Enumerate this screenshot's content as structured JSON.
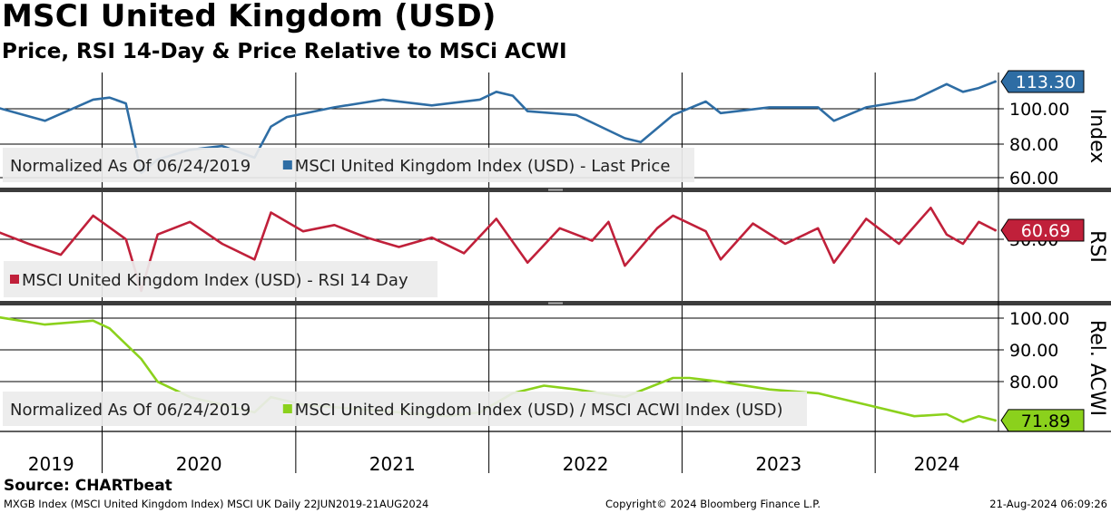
{
  "title": "MSCI United Kingdom (USD)",
  "subtitle": "Price, RSI 14-Day & Price Relative to MSCi ACWI",
  "source": "Source: CHARTbeat",
  "footer": {
    "left": "MXGB Index (MSCI United Kingdom Index) MSCI UK  Daily 22JUN2019-21AUG2024",
    "center": "Copyright© 2024 Bloomberg Finance L.P.",
    "right": "21-Aug-2024 06:09:26"
  },
  "colors": {
    "price": "#2e6da4",
    "rsi": "#c0203a",
    "relative": "#8bd11c"
  },
  "chart_data": [
    {
      "type": "line",
      "panel": "price",
      "axis_label": "Index",
      "y_ticks": [
        "100.00",
        "80.00",
        "60.00"
      ],
      "ylim": [
        58,
        118
      ],
      "last_value": "113.30",
      "legend": [
        "Normalized As Of 06/24/2019",
        "MSCI United Kingdom Index (USD) - Last Price"
      ],
      "x": [
        "2019-06",
        "2019-09",
        "2019-12",
        "2020-01",
        "2020-02",
        "2020-03",
        "2020-04",
        "2020-06",
        "2020-08",
        "2020-10",
        "2020-11",
        "2020-12",
        "2021-03",
        "2021-06",
        "2021-09",
        "2021-12",
        "2022-01",
        "2022-02",
        "2022-03",
        "2022-06",
        "2022-09",
        "2022-10",
        "2022-12",
        "2023-02",
        "2023-03",
        "2023-06",
        "2023-09",
        "2023-10",
        "2023-12",
        "2024-03",
        "2024-05",
        "2024-06",
        "2024-07",
        "2024-08"
      ],
      "y": [
        100,
        93,
        104,
        105,
        102,
        66,
        73,
        78,
        80,
        74,
        90,
        95,
        100,
        104,
        101,
        104,
        108,
        106,
        98,
        96,
        84,
        82,
        96,
        103,
        97,
        100,
        100,
        93,
        100,
        104,
        112,
        108,
        110,
        113.3
      ]
    },
    {
      "type": "line",
      "panel": "rsi",
      "axis_label": "RSI",
      "y_ticks": [
        "50.00"
      ],
      "ylim": [
        15,
        85
      ],
      "last_value": "60.69",
      "legend": [
        "MSCI United Kingdom Index (USD) - RSI 14 Day"
      ],
      "x": [
        "2019-06",
        "2019-08",
        "2019-10",
        "2019-12",
        "2020-02",
        "2020-03",
        "2020-04",
        "2020-06",
        "2020-08",
        "2020-10",
        "2020-11",
        "2021-01",
        "2021-03",
        "2021-05",
        "2021-07",
        "2021-09",
        "2021-11",
        "2022-01",
        "2022-03",
        "2022-05",
        "2022-07",
        "2022-08",
        "2022-09",
        "2022-11",
        "2022-12",
        "2023-02",
        "2023-03",
        "2023-05",
        "2023-07",
        "2023-09",
        "2023-10",
        "2023-12",
        "2024-02",
        "2024-04",
        "2024-05",
        "2024-06",
        "2024-07",
        "2024-08"
      ],
      "y": [
        60,
        52,
        45,
        70,
        55,
        22,
        58,
        66,
        52,
        42,
        72,
        60,
        64,
        56,
        50,
        56,
        46,
        68,
        40,
        62,
        54,
        66,
        38,
        62,
        70,
        60,
        42,
        65,
        52,
        62,
        40,
        68,
        52,
        75,
        58,
        52,
        66,
        60.69
      ]
    },
    {
      "type": "line",
      "panel": "relative",
      "axis_label": "Rel. ACWI",
      "y_ticks": [
        "100.00",
        "90.00",
        "80.00"
      ],
      "ylim": [
        69,
        102
      ],
      "last_value": "71.89",
      "legend": [
        "Normalized As Of 06/24/2019",
        "MSCI United Kingdom Index (USD) / MSCI ACWI Index (USD)"
      ],
      "x": [
        "2019-06",
        "2019-09",
        "2019-12",
        "2020-01",
        "2020-03",
        "2020-04",
        "2020-06",
        "2020-08",
        "2020-10",
        "2020-11",
        "2021-01",
        "2021-04",
        "2021-07",
        "2021-10",
        "2021-12",
        "2022-02",
        "2022-04",
        "2022-06",
        "2022-09",
        "2022-12",
        "2023-01",
        "2023-03",
        "2023-06",
        "2023-09",
        "2023-10",
        "2023-12",
        "2024-03",
        "2024-05",
        "2024-06",
        "2024-07",
        "2024-08"
      ],
      "y": [
        99,
        97,
        98,
        96,
        88,
        82,
        78,
        76,
        74,
        78,
        76,
        75,
        74,
        73,
        74,
        79,
        81,
        80,
        78,
        83,
        83,
        82,
        80,
        79,
        78,
        76,
        73,
        73.5,
        71.5,
        73,
        71.89
      ]
    }
  ],
  "x_axis": {
    "years": [
      "2019",
      "2020",
      "2021",
      "2022",
      "2023",
      "2024"
    ]
  }
}
